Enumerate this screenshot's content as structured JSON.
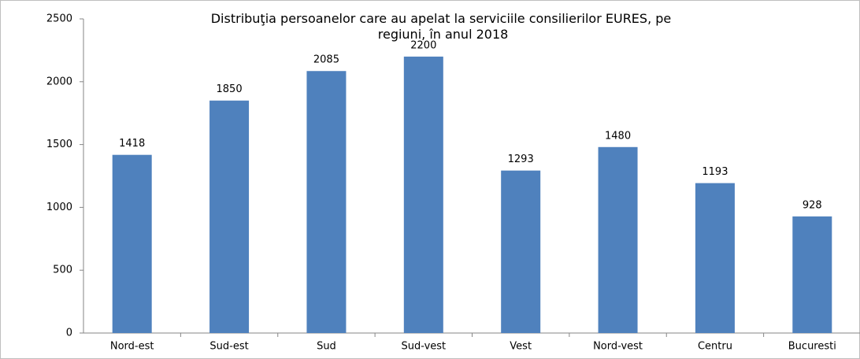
{
  "chart_data": {
    "type": "bar",
    "title": "Distribuţia persoanelor care au apelat la serviciile consilierilor EURES, pe regiuni, în anul 2018",
    "categories": [
      "Nord-est",
      "Sud-est",
      "Sud",
      "Sud-vest",
      "Vest",
      "Nord-vest",
      "Centru",
      "Bucuresti"
    ],
    "values": [
      1418,
      1850,
      2085,
      2200,
      1293,
      1480,
      1193,
      928
    ],
    "color": "#4f81bd",
    "ylim": [
      0,
      2500
    ],
    "yticks": [
      0,
      500,
      1000,
      1500,
      2000,
      2500
    ],
    "grid": false,
    "data_labels": true
  }
}
